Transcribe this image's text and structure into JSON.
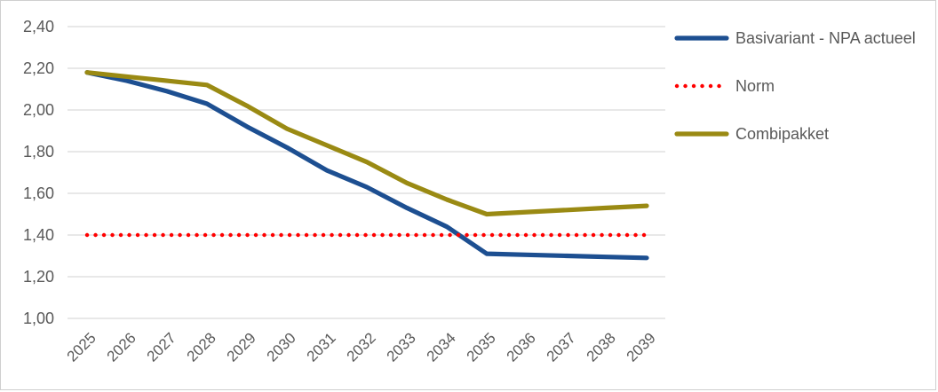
{
  "chart_data": {
    "type": "line",
    "categories": [
      "2025",
      "2026",
      "2027",
      "2028",
      "2029",
      "2030",
      "2031",
      "2032",
      "2033",
      "2034",
      "2035",
      "2036",
      "2037",
      "2038",
      "2039"
    ],
    "series": [
      {
        "name": "Basivariant - NPA actueel",
        "color": "#1D4F91",
        "style": "solid",
        "values": [
          2.18,
          2.14,
          2.09,
          2.03,
          1.92,
          1.82,
          1.71,
          1.63,
          1.53,
          1.44,
          1.31,
          1.305,
          1.3,
          1.295,
          1.29
        ]
      },
      {
        "name": "Norm",
        "color": "#FF0000",
        "style": "dotted",
        "values": [
          1.4,
          1.4,
          1.4,
          1.4,
          1.4,
          1.4,
          1.4,
          1.4,
          1.4,
          1.4,
          1.4,
          1.4,
          1.4,
          1.4,
          1.4
        ]
      },
      {
        "name": "Combipakket",
        "color": "#9A8A13",
        "style": "solid",
        "values": [
          2.18,
          2.16,
          2.14,
          2.12,
          2.02,
          1.91,
          1.83,
          1.75,
          1.65,
          1.57,
          1.5,
          1.51,
          1.52,
          1.53,
          1.54
        ]
      }
    ],
    "ylim": [
      1.0,
      2.4
    ],
    "yticks": [
      {
        "v": 1.0,
        "label": "1,00"
      },
      {
        "v": 1.2,
        "label": "1,20"
      },
      {
        "v": 1.4,
        "label": "1,40"
      },
      {
        "v": 1.6,
        "label": "1,60"
      },
      {
        "v": 1.8,
        "label": "1,80"
      },
      {
        "v": 2.0,
        "label": "2,00"
      },
      {
        "v": 2.2,
        "label": "2,20"
      },
      {
        "v": 2.4,
        "label": "2,40"
      }
    ],
    "grid": true,
    "legend_position": "right",
    "axis_text_color": "#595959",
    "grid_color": "#D9D9D9"
  }
}
